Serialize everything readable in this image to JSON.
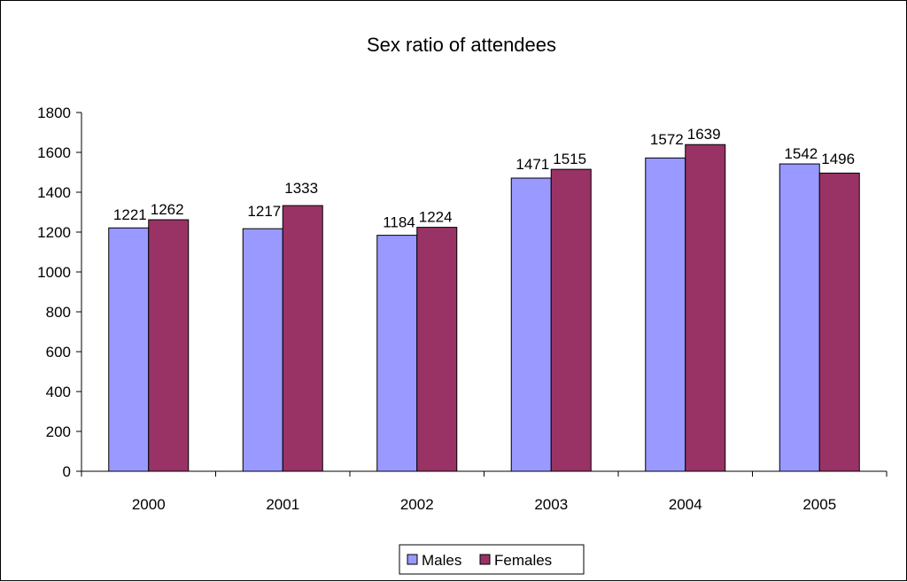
{
  "colors": {
    "males": "#9999ff",
    "females": "#993366",
    "axis": "#000000",
    "background": "#ffffff"
  },
  "chart_data": {
    "type": "bar",
    "title": "Sex ratio of attendees",
    "xlabel": "",
    "ylabel": "",
    "categories": [
      "2000",
      "2001",
      "2002",
      "2003",
      "2004",
      "2005"
    ],
    "series": [
      {
        "name": "Males",
        "values": [
          1221,
          1217,
          1184,
          1471,
          1572,
          1542
        ]
      },
      {
        "name": "Females",
        "values": [
          1262,
          1333,
          1224,
          1515,
          1639,
          1496
        ]
      }
    ],
    "y_ticks": [
      0,
      200,
      400,
      600,
      800,
      1000,
      1200,
      1400,
      1600,
      1800
    ],
    "ylim": [
      0,
      1800
    ],
    "grid": false,
    "legend_position": "bottom",
    "data_labels": true
  }
}
